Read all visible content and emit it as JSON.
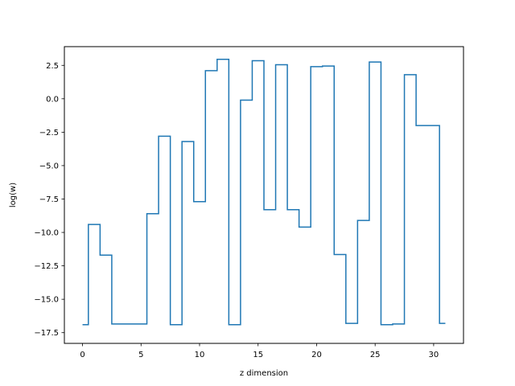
{
  "chart_data": {
    "type": "line",
    "drawstyle": "steps-mid",
    "title": "",
    "xlabel": "z dimension",
    "ylabel": "log(w)",
    "xlim": [
      -1.55,
      32.55
    ],
    "ylim": [
      -18.3,
      3.9
    ],
    "xticks": [
      0,
      5,
      10,
      15,
      20,
      25,
      30
    ],
    "xtick_labels": [
      "0",
      "5",
      "10",
      "15",
      "20",
      "25",
      "30"
    ],
    "yticks": [
      2.5,
      0.0,
      -2.5,
      -5.0,
      -7.5,
      -10.0,
      -12.5,
      -15.0,
      -17.5
    ],
    "ytick_labels": [
      "2.5",
      "0.0",
      "−2.5",
      "−5.0",
      "−7.5",
      "−10.0",
      "−12.5",
      "−15.0",
      "−17.5"
    ],
    "grid": false,
    "legend": "none",
    "series": [
      {
        "color": "#1f77b4",
        "x": [
          0,
          1,
          2,
          3,
          4,
          5,
          6,
          7,
          8,
          9,
          10,
          11,
          12,
          13,
          14,
          15,
          16,
          17,
          18,
          19,
          20,
          21,
          22,
          23,
          24,
          25,
          26,
          27,
          28,
          29,
          30,
          31
        ],
        "y": [
          -16.9,
          -9.4,
          -11.7,
          -16.85,
          -16.85,
          -16.85,
          -8.6,
          -2.8,
          -16.9,
          -3.2,
          -7.7,
          2.1,
          2.95,
          -16.9,
          -0.1,
          2.85,
          -8.3,
          2.55,
          -8.3,
          -9.6,
          2.4,
          2.45,
          -11.65,
          -16.8,
          -9.1,
          2.75,
          -16.9,
          -16.85,
          1.8,
          -2.0,
          -2.0,
          -16.8
        ]
      }
    ]
  }
}
